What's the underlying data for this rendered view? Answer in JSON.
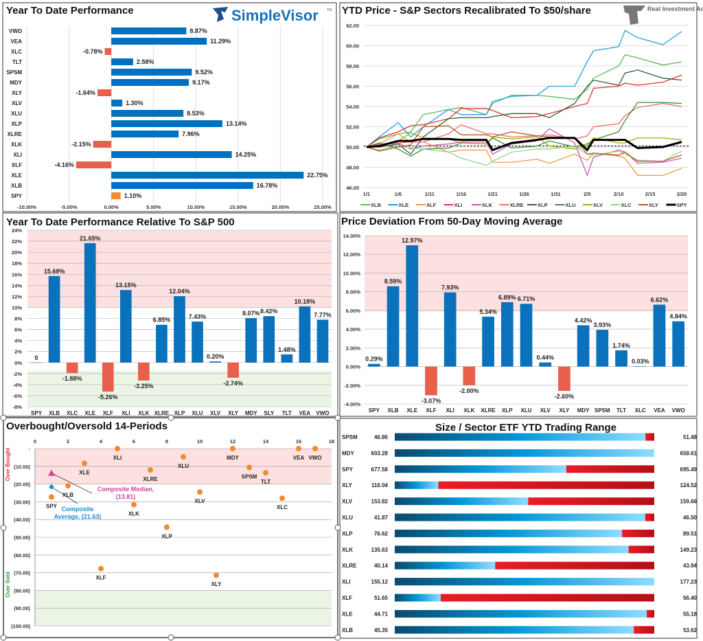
{
  "panels": {
    "ytd": {
      "title": "Year To Date Performance",
      "logo": "SimpleVisor",
      "logo_tm": "TM",
      "chart_data": {
        "type": "bar",
        "orientation": "horizontal",
        "categories": [
          "VWO",
          "VEA",
          "XLC",
          "TLT",
          "SPSM",
          "MDY",
          "XLY",
          "XLV",
          "XLU",
          "XLP",
          "XLRE",
          "XLK",
          "XLI",
          "XLF",
          "XLE",
          "XLB",
          "SPY"
        ],
        "values": [
          8.87,
          11.29,
          -0.78,
          2.58,
          9.52,
          9.17,
          -1.64,
          1.3,
          8.53,
          13.14,
          7.96,
          -2.15,
          14.25,
          -4.16,
          22.75,
          16.78,
          1.1
        ],
        "labels": [
          "8.87%",
          "11.29%",
          "-0.78%",
          "2.58%",
          "9.52%",
          "9.17%",
          "-1.64%",
          "1.30%",
          "8.53%",
          "13.14%",
          "7.96%",
          "-2.15%",
          "14.25%",
          "-4.16%",
          "22.75%",
          "16.78%",
          "1.10%"
        ],
        "xlim": [
          -10,
          25
        ],
        "xticks": [
          -10,
          -5,
          0,
          5,
          10,
          15,
          20,
          25
        ],
        "xtick_labels": [
          "-10.00%",
          "-5.00%",
          "0.00%",
          "5.00%",
          "10.00%",
          "15.00%",
          "20.00%",
          "25.00%"
        ],
        "grid": true,
        "colors": {
          "positive": "#0070c0",
          "negative": "#e8604c",
          "highlight": "#f28a30"
        }
      }
    },
    "lines": {
      "title": "YTD Price - S&P Sectors Recalibrated To $50/share",
      "logo": "Real Investment Advice",
      "chart_data": {
        "type": "line",
        "x": [
          "1/1",
          "1/3",
          "1/6",
          "1/8",
          "1/10",
          "1/14",
          "1/16",
          "1/20",
          "1/21",
          "1/24",
          "1/28",
          "1/30",
          "2/3",
          "2/5",
          "2/6",
          "2/10",
          "2/11",
          "2/13",
          "2/17",
          "2/20"
        ],
        "ylim": [
          46,
          62
        ],
        "yticks": [
          46,
          48,
          50,
          52,
          54,
          56,
          58,
          60,
          62
        ],
        "ytick_labels": [
          "46.00",
          "48.00",
          "50.00",
          "52.00",
          "54.00",
          "56.00",
          "58.00",
          "60.00",
          "62.00"
        ],
        "xtick_labels": [
          "1/1",
          "1/6",
          "1/11",
          "1/16",
          "1/21",
          "1/26",
          "1/31",
          "2/5",
          "2/10",
          "2/15",
          "2/20"
        ],
        "reference_line": 50.1,
        "legend": "bottom",
        "series": [
          {
            "name": "XLB",
            "color": "#5cb85c",
            "values": [
              50,
              50.8,
              51.3,
              51.5,
              53.2,
              53.7,
              53.9,
              53.2,
              54.3,
              55.1,
              55.1,
              55,
              54.7,
              55.7,
              56.8,
              58,
              59.1,
              58.8,
              58.1,
              58.4
            ]
          },
          {
            "name": "XLE",
            "color": "#1ca0e0",
            "values": [
              50,
              51,
              52.4,
              51,
              52,
              53.7,
              53.2,
              53.2,
              54.5,
              55,
              55.1,
              56,
              56,
              58.4,
              59.5,
              59.9,
              61.5,
              60.8,
              60.1,
              61.4
            ]
          },
          {
            "name": "XLF",
            "color": "#f79646",
            "values": [
              50,
              50.3,
              51.3,
              50.5,
              50.5,
              49.5,
              49.7,
              49.7,
              48.5,
              48.5,
              48.8,
              48.4,
              49.3,
              48.7,
              49.4,
              49.1,
              48.9,
              47.2,
              47.2,
              47.9
            ]
          },
          {
            "name": "XLI",
            "color": "#e8312f",
            "values": [
              50,
              50.9,
              51.5,
              52.1,
              52.2,
              52.8,
              53.8,
              53.8,
              53.6,
              52.9,
              53,
              53.3,
              54,
              54.3,
              55.8,
              56,
              56.3,
              56.1,
              56.4,
              57.1
            ]
          },
          {
            "name": "XLK",
            "color": "#d64fb5",
            "values": [
              50,
              50.2,
              50.4,
              49.8,
              50.1,
              50.3,
              50.5,
              50.5,
              49.3,
              50.3,
              50.6,
              51.8,
              50.4,
              47.2,
              49,
              49.7,
              49.5,
              48.4,
              48.5,
              48.9
            ]
          },
          {
            "name": "XLRE",
            "color": "#f26b6b",
            "values": [
              50,
              50.3,
              50.4,
              50.5,
              50.5,
              51.3,
              52.2,
              51.3,
              51.3,
              51,
              51.1,
              51.2,
              50.8,
              51.1,
              52,
              52.3,
              53.1,
              53.9,
              54.3,
              54
            ]
          },
          {
            "name": "XLP",
            "color": "#2e5e3a",
            "values": [
              50,
              50,
              50.3,
              49.3,
              51,
              52.8,
              52.9,
              52.9,
              53,
              53.3,
              53.3,
              52.9,
              54.3,
              56,
              56.6,
              56.1,
              57.3,
              57.6,
              56.8,
              56.6
            ]
          },
          {
            "name": "XLU",
            "color": "#3a8a3a",
            "values": [
              50,
              50.4,
              49.8,
              49.1,
              49.8,
              49.9,
              50.4,
              50.3,
              50.9,
              49.9,
              50.1,
              50.6,
              50,
              50.3,
              50.7,
              51.5,
              52.6,
              54.4,
              54.4,
              54.3
            ]
          },
          {
            "name": "XLV",
            "color": "#a8a800",
            "values": [
              50,
              50.1,
              50.6,
              51.4,
              50.9,
              50.8,
              50.4,
              50.3,
              51,
              50.8,
              51,
              50.1,
              49.8,
              50.1,
              50.9,
              50.4,
              50.4,
              50.9,
              50.9,
              50.7
            ]
          },
          {
            "name": "XLC",
            "color": "#8fd68f",
            "values": [
              50,
              49.7,
              50.1,
              49.9,
              49.8,
              49.5,
              48.9,
              48.2,
              48.6,
              49.5,
              49.8,
              49.8,
              50.1,
              49.3,
              49.2,
              49.6,
              49.3,
              48.7,
              48.6,
              49.6
            ]
          },
          {
            "name": "XLY",
            "color": "#b55a1a",
            "values": [
              50,
              49.6,
              50,
              50.2,
              52,
              52.1,
              51.2,
              51.2,
              51,
              51.5,
              51.1,
              51,
              50.9,
              49.3,
              49.4,
              49.2,
              49.5,
              48.6,
              48.6,
              49.2
            ]
          },
          {
            "name": "SPY",
            "color": "#000000",
            "values": [
              50,
              50.1,
              50.6,
              50.6,
              50.8,
              50.8,
              50.7,
              50.7,
              49.7,
              50.4,
              50.7,
              50.9,
              50.9,
              49.7,
              50.7,
              50.7,
              50.7,
              49.9,
              50,
              50.5
            ]
          }
        ]
      }
    },
    "relative": {
      "title": "Year To Date Performance Relative To S&P 500",
      "chart_data": {
        "type": "bar",
        "categories": [
          "SPY",
          "XLB",
          "XLC",
          "XLE",
          "XLF",
          "XLI",
          "XLK",
          "XLRE",
          "XLP",
          "XLU",
          "XLV",
          "XLY",
          "MDY",
          "SLY",
          "TLT",
          "VEA",
          "VWO"
        ],
        "values": [
          0,
          15.68,
          -1.88,
          21.65,
          -5.26,
          13.15,
          -3.25,
          6.85,
          12.04,
          7.43,
          0.2,
          -2.74,
          8.07,
          8.42,
          1.48,
          10.18,
          7.77
        ],
        "labels": [
          "0",
          "15.68%",
          "-1.88%",
          "21.65%",
          "-5.26%",
          "13.15%",
          "-3.25%",
          "6.85%",
          "12.04%",
          "7.43%",
          "0.20%",
          "-2.74%",
          "8.07%",
          "8.42%",
          "1.48%",
          "10.18%",
          "7.77%"
        ],
        "ylim": [
          -8,
          24
        ],
        "yticks": [
          -8,
          -6,
          -4,
          -2,
          0,
          2,
          4,
          6,
          8,
          10,
          12,
          14,
          16,
          18,
          20,
          22,
          24
        ],
        "ytick_labels": [
          "-8%",
          "-6%",
          "-4%",
          "-2%",
          "0%",
          "2%",
          "4%",
          "6%",
          "8%",
          "10%",
          "12%",
          "14%",
          "16%",
          "18%",
          "20%",
          "22%",
          "24%"
        ],
        "overbought_zone": [
          10,
          24
        ],
        "oversold_zone": [
          -8,
          -1.5
        ],
        "grid": true
      }
    },
    "deviation": {
      "title": "Price Deviation From 50-Day Moving Average",
      "chart_data": {
        "type": "bar",
        "categories": [
          "SPY",
          "XLB",
          "XLE",
          "XLF",
          "XLI",
          "XLK",
          "XLRE",
          "XLP",
          "XLU",
          "XLV",
          "XLY",
          "MDY",
          "SPSM",
          "TLT",
          "XLC",
          "VEA",
          "VWO"
        ],
        "values": [
          0.29,
          8.59,
          12.97,
          -3.07,
          7.93,
          -2.0,
          5.34,
          6.89,
          6.71,
          0.44,
          -2.6,
          4.42,
          3.93,
          1.74,
          0.03,
          6.62,
          4.84
        ],
        "labels": [
          "0.29%",
          "8.59%",
          "12.97%",
          "-3.07%",
          "7.93%",
          "-2.00%",
          "5.34%",
          "6.89%",
          "6.71%",
          "0.44%",
          "-2.60%",
          "4.42%",
          "3.93%",
          "1.74%",
          "0.03%",
          "6.62%",
          "4.84%"
        ],
        "ylim": [
          -4,
          14
        ],
        "yticks": [
          -4,
          -2,
          0,
          2,
          4,
          6,
          8,
          10,
          12,
          14
        ],
        "ytick_labels": [
          "-4.00%",
          "-2.00%",
          "0.00%",
          "2.00%",
          "4.00%",
          "6.00%",
          "8.00%",
          "10.00%",
          "12.00%",
          "14.00%"
        ],
        "overbought_zone": [
          5.9,
          14
        ],
        "grid": true
      }
    },
    "obos": {
      "title": "Overbought/Oversold 14-Periods",
      "overbought_label": "Over Bought",
      "oversold_label": "Over Sold",
      "chart_data": {
        "type": "scatter",
        "points": [
          {
            "name": "SPY",
            "x": 1,
            "y": -27.3
          },
          {
            "name": "XLB",
            "x": 2,
            "y": -21
          },
          {
            "name": "XLE",
            "x": 3,
            "y": -8.3
          },
          {
            "name": "XLF",
            "x": 4,
            "y": -67.7
          },
          {
            "name": "XLI",
            "x": 5,
            "y": 0
          },
          {
            "name": "XLK",
            "x": 6,
            "y": -31.6
          },
          {
            "name": "XLRE",
            "x": 7,
            "y": -12
          },
          {
            "name": "XLP",
            "x": 8,
            "y": -44.3
          },
          {
            "name": "XLU",
            "x": 9,
            "y": -4.6
          },
          {
            "name": "XLV",
            "x": 10,
            "y": -24.5
          },
          {
            "name": "XLY",
            "x": 11,
            "y": -71.4
          },
          {
            "name": "MDY",
            "x": 12,
            "y": 0
          },
          {
            "name": "SPSM",
            "x": 13,
            "y": -10.6
          },
          {
            "name": "TLT",
            "x": 14,
            "y": -13.6
          },
          {
            "name": "XLC",
            "x": 15,
            "y": -28
          },
          {
            "name": "VEA",
            "x": 16,
            "y": 0
          },
          {
            "name": "VWO",
            "x": 17,
            "y": 0
          }
        ],
        "median": {
          "label": "Composite Median,",
          "value_label": "(13.81)",
          "x": 1,
          "y": -13.81,
          "color": "#d63fa0"
        },
        "average": {
          "label": "Composite",
          "label2": "Average,  (21.63)",
          "x": 1,
          "y": -21.63,
          "color": "#1a8fd6"
        },
        "xlim": [
          0,
          18
        ],
        "xticks": [
          0,
          2,
          4,
          6,
          8,
          10,
          12,
          14,
          16,
          18
        ],
        "xtick_labels": [
          "0",
          "2",
          "4",
          "6",
          "8",
          "10",
          "12",
          "14",
          "16",
          "18"
        ],
        "ylim": [
          -100,
          0
        ],
        "yticks": [
          0,
          -10,
          -20,
          -30,
          -40,
          -50,
          -60,
          -70,
          -80,
          -90,
          -100
        ],
        "ytick_labels": [
          "-",
          "(10.00)",
          "(20.00)",
          "(30.00)",
          "(40.00)",
          "(50.00)",
          "(60.00)",
          "(70.00)",
          "(80.00)",
          "(90.00)",
          "(100.00)"
        ],
        "overbought_zone": [
          -20,
          0
        ],
        "oversold_zone": [
          -100,
          -80
        ],
        "point_color": "#f28a30"
      }
    },
    "range": {
      "title": "Size / Sector ETF YTD Trading Range",
      "chart_data": {
        "type": "bar",
        "rows": [
          {
            "name": "SPSM",
            "low": "46.86",
            "high": "51.48",
            "position": 0.966
          },
          {
            "name": "MDY",
            "low": "603.28",
            "high": "658.61",
            "position": 1.0
          },
          {
            "name": "SPY",
            "low": "677.58",
            "high": "695.49",
            "position": 0.661
          },
          {
            "name": "XLY",
            "low": "116.04",
            "high": "124.52",
            "position": 0.168
          },
          {
            "name": "XLV",
            "low": "153.82",
            "high": "159.66",
            "position": 0.514
          },
          {
            "name": "XLU",
            "low": "41.87",
            "high": "46.50",
            "position": 0.965
          },
          {
            "name": "XLP",
            "low": "76.62",
            "high": "89.51",
            "position": 0.876
          },
          {
            "name": "XLK",
            "low": "135.63",
            "high": "149.23",
            "position": 0.901
          },
          {
            "name": "XLRE",
            "low": "40.14",
            "high": "43.94",
            "position": 0.387
          },
          {
            "name": "XLI",
            "low": "155.12",
            "high": "177.23",
            "position": 1.0
          },
          {
            "name": "XLF",
            "low": "51.65",
            "high": "56.40",
            "position": 0.177
          },
          {
            "name": "XLE",
            "low": "44.71",
            "high": "55.18",
            "position": 0.971
          },
          {
            "name": "XLB",
            "low": "45.35",
            "high": "53.62",
            "position": 0.921
          }
        ]
      }
    }
  }
}
